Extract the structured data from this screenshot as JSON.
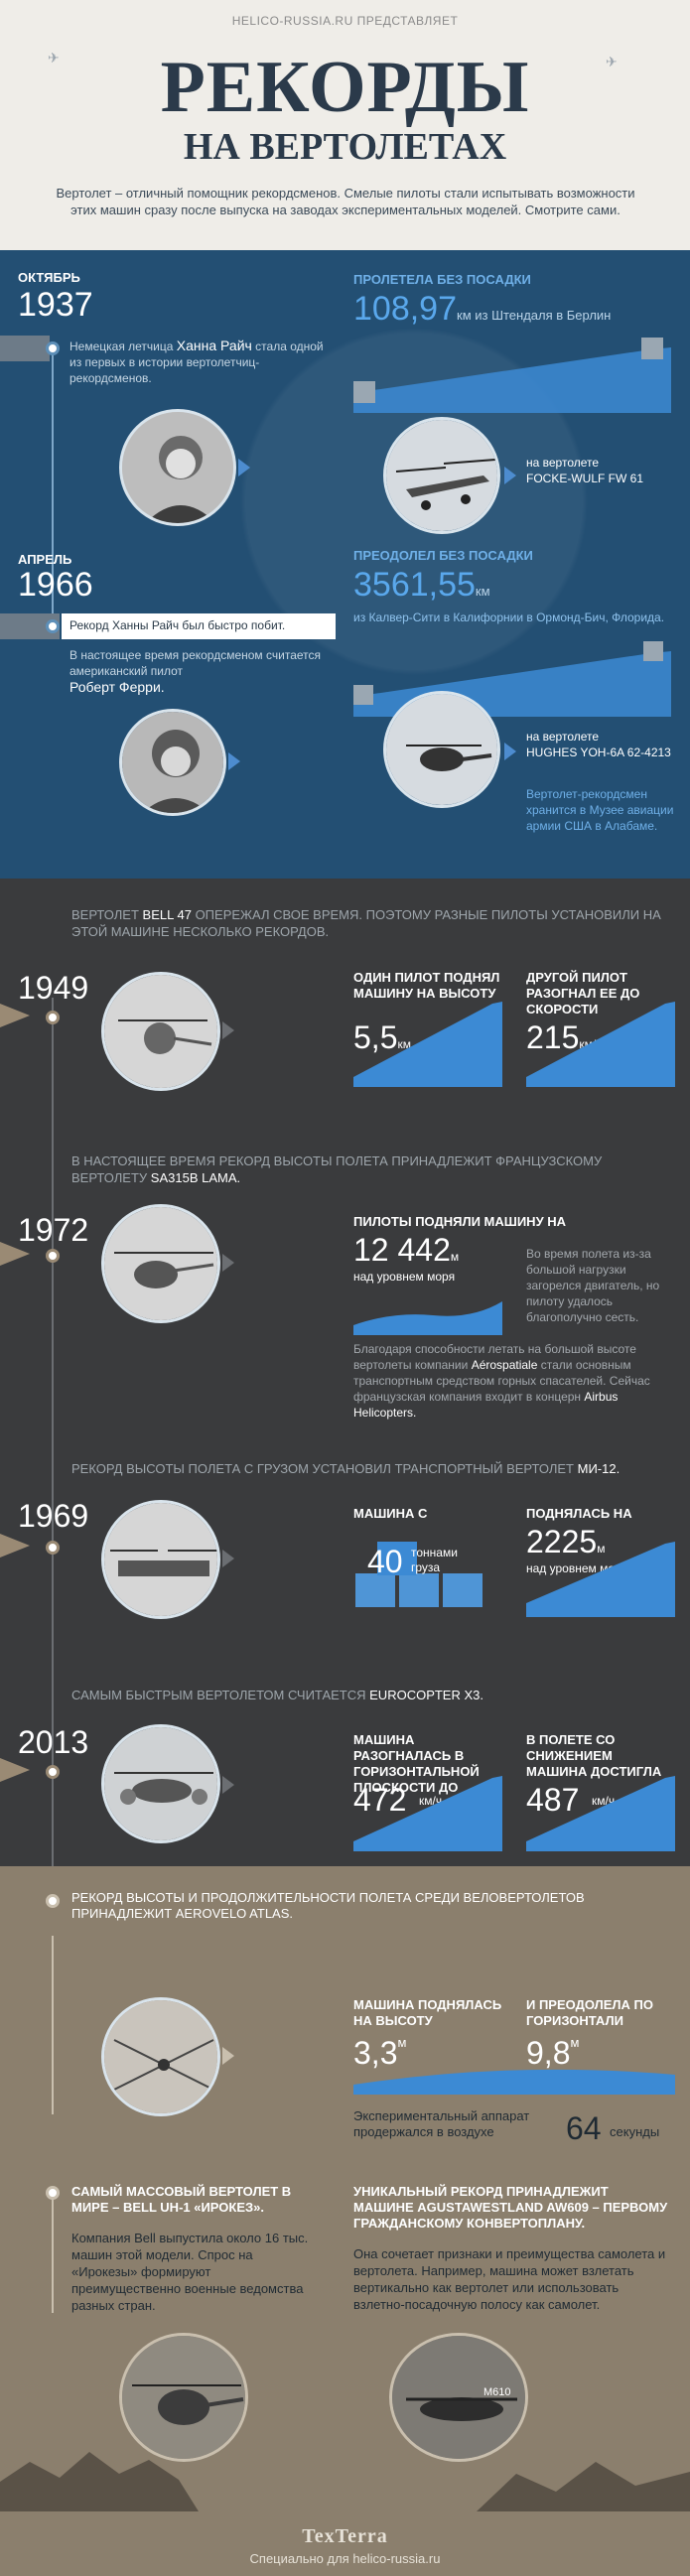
{
  "header": {
    "presents": "HELICO-RUSSIA.RU ПРЕДСТАВЛЯЕТ",
    "title_line1": "РЕКОРДЫ",
    "title_line2": "НА ВЕРТОЛЕТАХ",
    "intro": "Вертолет – отличный помощник рекордсменов. Смелые пилоты стали испытывать возможности этих машин сразу после выпуска на заводах экспериментальных моделей. Смотрите сами."
  },
  "blue": {
    "r1937": {
      "month": "ОКТЯБРЬ",
      "year": "1937",
      "text_pre": "Немецкая летчица",
      "name": "Ханна Райч",
      "text_post": "стала одной из первых в истории вертолетчиц-рекордсменов.",
      "cap": "ПРОЛЕТЕЛА БЕЗ ПОСАДКИ",
      "value": "108,97",
      "value_tail": "км из Штендаля в Берлин",
      "heli_pre": "на вертолете",
      "heli_name": "FOCKE-WULF FW 61"
    },
    "r1966": {
      "month": "АПРЕЛЬ",
      "year": "1966",
      "tag": "Рекорд Ханны Райч был быстро побит.",
      "text_pre": "В настоящее время рекордсменом считается американский пилот",
      "name": "Роберт Ферри.",
      "cap": "ПРЕОДОЛЕЛ БЕЗ ПОСАДКИ",
      "value": "3561,55",
      "unit": "км",
      "route": "из Калвер-Сити в Калифорнии в Ормонд-Бич, Флорида.",
      "heli_pre": "на вертолете",
      "heli_name": "HUGHES YOH-6A 62-4213",
      "museum": "Вертолет-рекордсмен хранится в Музее авиации армии США в Алабаме."
    }
  },
  "dark": {
    "bell_intro_pre": "Вертолет",
    "bell_name": "BELL 47",
    "bell_intro_post": "опережал свое время. Поэтому разные пилоты установили на этой машине несколько рекордов.",
    "y1949": {
      "year": "1949",
      "c1": "ОДИН ПИЛОТ ПОДНЯЛ МАШИНУ НА ВЫСОТУ",
      "v1": "5,5",
      "u1": "км",
      "c2": "ДРУГОЙ ПИЛОТ РАЗОГНАЛ ЕЕ ДО СКОРОСТИ",
      "v2": "215",
      "u2": "км/ч"
    },
    "lama_intro_pre": "В настоящее время рекорд высоты полета принадлежит французскому вертолету",
    "lama_name": "SA315B LAMA.",
    "y1972": {
      "year": "1972",
      "cap": "ПИЛОТЫ ПОДНЯЛИ МАШИНУ НА",
      "value": "12 442",
      "unit": "м",
      "sub": "над уровнем моря",
      "side": "Во время полета из-за большой нагрузки загорелся двигатель, но пилоту удалось благополучно сесть.",
      "body_pre": "Благодаря способности летать на большой высоте вертолеты компании",
      "company": "Aérospatiale",
      "body_mid": "стали основным транспортным средством горных спасателей. Сейчас французская компания входит в концерн",
      "airbus": "Airbus Helicopters."
    },
    "mi12_intro_pre": "Рекорд высоты полета с грузом  установил транспортный вертолет",
    "mi12_name": "МИ-12.",
    "y1969": {
      "year": "1969",
      "c1": "МАШИНА С",
      "v1": "40",
      "u1": "тоннами груза",
      "c2": "ПОДНЯЛАСЬ НА",
      "v2": "2225",
      "u2": "м",
      "sub2": "над уровнем моря"
    },
    "x3_intro_pre": "Самым быстрым вертолетом считается",
    "x3_name": "EUROCOPTER X3.",
    "y2013": {
      "year": "2013",
      "c1": "МАШИНА РАЗОГНАЛАСЬ В ГОРИЗОНТАЛЬНОЙ ПЛОСКОСТИ ДО",
      "v1": "472",
      "u1": "км/ч",
      "c2": "В ПОЛЕТЕ СО СНИЖЕНИЕМ МАШИНА ДОСТИГЛА",
      "v2": "487",
      "u2": "км/ч"
    }
  },
  "sand": {
    "atlas_intro": "Рекорд высоты и продолжительности полета среди веловертолетов принадлежит AEROVELO ATLAS.",
    "c1": "МАШИНА ПОДНЯЛАСЬ НА ВЫСОТУ",
    "v1": "3,3",
    "u1": "м",
    "c2": "И ПРЕОДОЛЕЛА ПО ГОРИЗОНТАЛИ",
    "v2": "9,8",
    "u2": "м",
    "held": "Экспериментальный аппарат продержался в воздухе",
    "sec_v": "64",
    "sec_u": "секунды",
    "mass_cap": "САМЫЙ МАССОВЫЙ ВЕРТОЛЕТ В МИРЕ – BELL UH-1 «ИРОКЕЗ».",
    "mass_text": "Компания Bell выпустила около 16 тыс. машин этой модели. Спрос на «Ирокезы» формируют преимущественно военные ведомства разных стран.",
    "aw_cap": "УНИКАЛЬНЫЙ РЕКОРД ПРИНАДЛЕЖИТ МАШИНЕ AGUSTAWESTLAND AW609 – ПЕРВОМУ ГРАЖДАНСКОМУ КОНВЕРТОПЛАНУ.",
    "aw_text": "Она сочетает признаки и преимущества самолета и вертолета. Например, машина может взлетать вертикально как вертолет или использовать взлетно-посадочную полосу как самолет.",
    "tail_mark": "M610",
    "logo": "TexTerra",
    "credit": "Специально для helico-russia.ru"
  },
  "colors": {
    "blue_bg": "#234f73",
    "dark_bg": "#3a3b3d",
    "sand_bg": "#8b7f6d",
    "accent_blue": "#5aa8ec"
  }
}
